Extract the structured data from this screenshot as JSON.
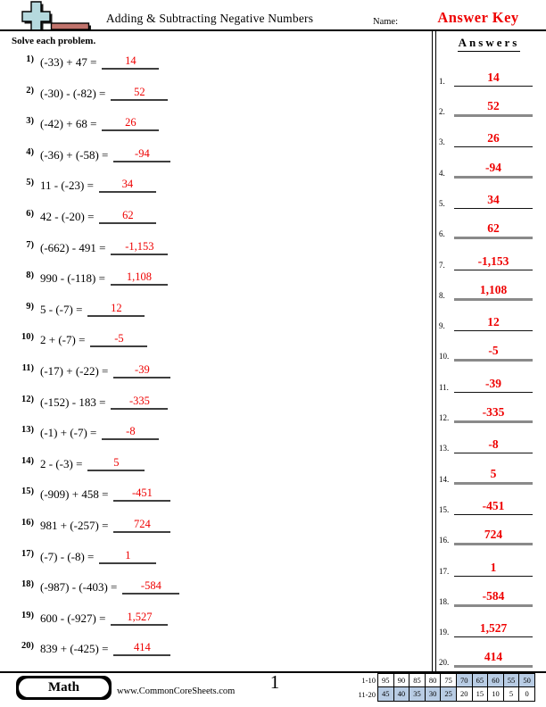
{
  "header": {
    "title": "Adding & Subtracting Negative Numbers",
    "name_label": "Name:",
    "name_value": "Answer Key",
    "instructions": "Solve each problem."
  },
  "answers_panel": {
    "heading": "Answers"
  },
  "problems": [
    {
      "label": "1)",
      "expr": "(-33) + 47 =",
      "answer": "14"
    },
    {
      "label": "2)",
      "expr": "(-30) - (-82) =",
      "answer": "52"
    },
    {
      "label": "3)",
      "expr": "(-42) + 68 =",
      "answer": "26"
    },
    {
      "label": "4)",
      "expr": "(-36) + (-58) =",
      "answer": "-94"
    },
    {
      "label": "5)",
      "expr": "11 - (-23) =",
      "answer": "34"
    },
    {
      "label": "6)",
      "expr": "42 - (-20) =",
      "answer": "62"
    },
    {
      "label": "7)",
      "expr": "(-662) - 491 =",
      "answer": "-1,153"
    },
    {
      "label": "8)",
      "expr": "990 - (-118) =",
      "answer": "1,108"
    },
    {
      "label": "9)",
      "expr": "5 - (-7) =",
      "answer": "12"
    },
    {
      "label": "10)",
      "expr": "2 + (-7) =",
      "answer": "-5"
    },
    {
      "label": "11)",
      "expr": "(-17) + (-22) =",
      "answer": "-39"
    },
    {
      "label": "12)",
      "expr": "(-152) - 183 =",
      "answer": "-335"
    },
    {
      "label": "13)",
      "expr": "(-1) + (-7) =",
      "answer": "-8"
    },
    {
      "label": "14)",
      "expr": "2 - (-3) =",
      "answer": "5"
    },
    {
      "label": "15)",
      "expr": "(-909) + 458 =",
      "answer": "-451"
    },
    {
      "label": "16)",
      "expr": "981 + (-257) =",
      "answer": "724"
    },
    {
      "label": "17)",
      "expr": "(-7) - (-8) =",
      "answer": "1"
    },
    {
      "label": "18)",
      "expr": "(-987) - (-403) =",
      "answer": "-584"
    },
    {
      "label": "19)",
      "expr": "600 - (-927) =",
      "answer": "1,527"
    },
    {
      "label": "20)",
      "expr": "839 + (-425) =",
      "answer": "414"
    }
  ],
  "answer_list": [
    {
      "label": "1.",
      "value": "14"
    },
    {
      "label": "2.",
      "value": "52"
    },
    {
      "label": "3.",
      "value": "26"
    },
    {
      "label": "4.",
      "value": "-94"
    },
    {
      "label": "5.",
      "value": "34"
    },
    {
      "label": "6.",
      "value": "62"
    },
    {
      "label": "7.",
      "value": "-1,153"
    },
    {
      "label": "8.",
      "value": "1,108"
    },
    {
      "label": "9.",
      "value": "12"
    },
    {
      "label": "10.",
      "value": "-5"
    },
    {
      "label": "11.",
      "value": "-39"
    },
    {
      "label": "12.",
      "value": "-335"
    },
    {
      "label": "13.",
      "value": "-8"
    },
    {
      "label": "14.",
      "value": "5"
    },
    {
      "label": "15.",
      "value": "-451"
    },
    {
      "label": "16.",
      "value": "724"
    },
    {
      "label": "17.",
      "value": "1"
    },
    {
      "label": "18.",
      "value": "-584"
    },
    {
      "label": "19.",
      "value": "1,527"
    },
    {
      "label": "20.",
      "value": "414"
    }
  ],
  "footer": {
    "brand": "Math",
    "website": "www.CommonCoreSheets.com",
    "page_number": "1",
    "score_table": {
      "row_labels": [
        "1-10",
        "11-20"
      ],
      "values": [
        [
          "95",
          "90",
          "85",
          "80",
          "75",
          "70",
          "65",
          "60",
          "55",
          "50"
        ],
        [
          "45",
          "40",
          "35",
          "30",
          "25",
          "20",
          "15",
          "10",
          "5",
          "0"
        ]
      ],
      "shaded": [
        [
          0,
          0,
          0,
          0,
          0,
          1,
          1,
          1,
          1,
          1
        ],
        [
          1,
          1,
          1,
          1,
          1,
          0,
          0,
          0,
          0,
          0
        ]
      ]
    }
  },
  "colors": {
    "answer_red": "#ee0000",
    "shade_blue": "#b8cce4",
    "icon_plus_blue": "#b5d9de",
    "icon_minus_red": "#c1736c"
  }
}
